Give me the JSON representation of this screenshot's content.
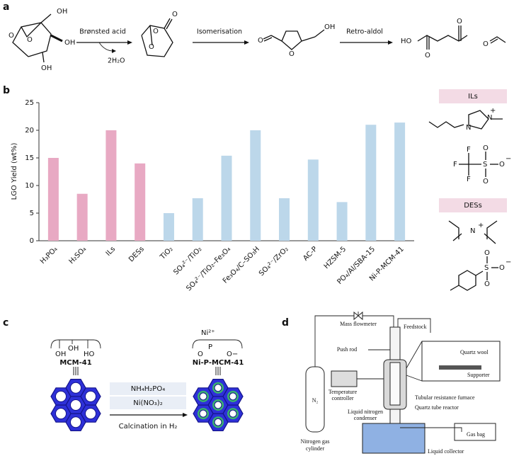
{
  "panel_labels": [
    "a",
    "b",
    "c",
    "d"
  ],
  "panel_a": {
    "reagent": "Brønsted acid",
    "byproduct": "2H₂O",
    "step_2": "Isomerisation",
    "step_3": "Retro-aldol",
    "atom_labels": [
      "OH",
      "OH",
      "OH",
      "O",
      "O",
      "O",
      "O",
      "O",
      "O",
      "O",
      "OH",
      "HO",
      "O",
      "O",
      "O"
    ]
  },
  "chart_data": {
    "type": "bar",
    "y_label": "LGO Yield (wt%)",
    "categories": [
      "H₃PO₄",
      "H₂SO₄",
      "ILs",
      "DESs",
      "TiO₂",
      "SO₄²⁻/TiO₂",
      "SO₄²⁻/TiO₂–Fe₃O₄",
      "Fe₃O₄/C–SO₃H",
      "SO₄²⁻/ZrO₂",
      "AC-P",
      "HZSM-5",
      "PO₄/Al/SBA-15",
      "Ni-P-MCM-41"
    ],
    "values": [
      15,
      8.5,
      20,
      14,
      5,
      7.7,
      15.4,
      20,
      7.7,
      14.7,
      7,
      21,
      21.4
    ],
    "colors": [
      "#e8a9c3",
      "#e8a9c3",
      "#e8a9c3",
      "#e8a9c3",
      "#bcd7ea",
      "#bcd7ea",
      "#bcd7ea",
      "#bcd7ea",
      "#bcd7ea",
      "#bcd7ea",
      "#bcd7ea",
      "#bcd7ea",
      "#bcd7ea"
    ],
    "ylim": [
      0,
      25
    ],
    "yticks": [
      0,
      5,
      10,
      15,
      20,
      25
    ]
  },
  "panel_b_side": {
    "headers": [
      "ILs",
      "DESs"
    ],
    "atom_labels": [
      "N",
      "N",
      "+",
      "F",
      "F",
      "F",
      "S",
      "O",
      "O",
      "O",
      "−",
      "N",
      "+",
      "S",
      "O",
      "O",
      "O",
      "−"
    ]
  },
  "panel_c": {
    "left_labels": [
      "OH",
      "OH",
      "HO"
    ],
    "support": "MCM-41",
    "right_labels": [
      "Ni²⁺",
      "O",
      "P",
      "O−"
    ],
    "product": "Ni-P-MCM-41",
    "reagents": [
      "NH₄H₂PO₄",
      "Ni(NO₃)₂"
    ],
    "condition": "Calcination in H₂"
  },
  "panel_d": {
    "mass_flowmeter": "Mass flowmeter",
    "feedstock": "Feedstock",
    "push_rod": "Push rod",
    "quartz_wool": "Quartz wool",
    "supporter": "Supporter",
    "temperature_controller": [
      "Temperature",
      "controller"
    ],
    "furnace": "Tubular resistance furnace",
    "reactor": "Quartz tube reactor",
    "gas": "N₂",
    "condenser": [
      "Liquid nitrogen",
      "condenser"
    ],
    "gas_bag": "Gas bag",
    "cylinder": [
      "Nitrogen gas",
      "cylinder"
    ],
    "collector": "Liquid collector"
  }
}
